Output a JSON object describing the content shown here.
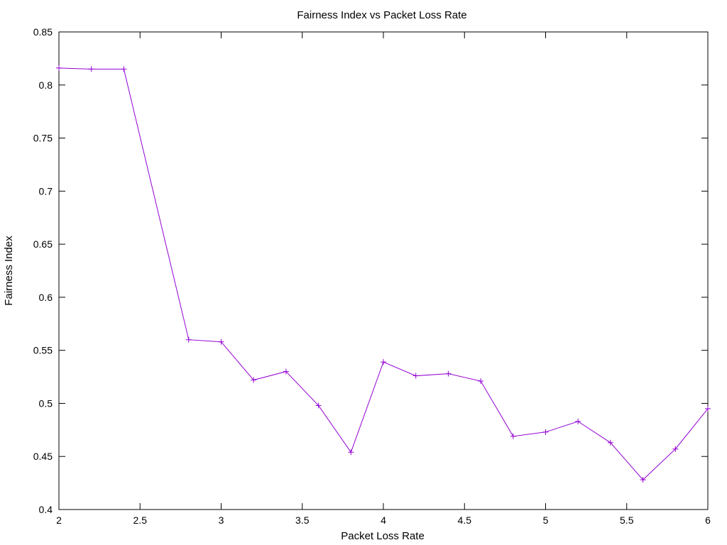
{
  "chart_data": {
    "type": "line",
    "title": "Fairness Index vs Packet Loss Rate",
    "xlabel": "Packet Loss Rate",
    "ylabel": "Fairness Index",
    "xlim": [
      2,
      6
    ],
    "ylim": [
      0.4,
      0.85
    ],
    "xticks": [
      2,
      2.5,
      3,
      3.5,
      4,
      4.5,
      5,
      5.5,
      6
    ],
    "xtick_labels": [
      "2",
      "2.5",
      "3",
      "3.5",
      "4",
      "4.5",
      "5",
      "5.5",
      "6"
    ],
    "yticks": [
      0.4,
      0.45,
      0.5,
      0.55,
      0.6,
      0.65,
      0.7,
      0.75,
      0.8,
      0.85
    ],
    "ytick_labels": [
      "0.4",
      "0.45",
      "0.5",
      "0.55",
      "0.6",
      "0.65",
      "0.7",
      "0.75",
      "0.8",
      "0.85"
    ],
    "grid": false,
    "legend": "none",
    "series": [
      {
        "color": "#9400d3",
        "marker": "plus",
        "x": [
          2.0,
          2.2,
          2.4,
          2.8,
          3.0,
          3.2,
          3.4,
          3.6,
          3.8,
          4.0,
          4.2,
          4.4,
          4.6,
          4.8,
          5.0,
          5.2,
          5.4,
          5.6,
          5.8,
          6.0
        ],
        "y": [
          0.816,
          0.815,
          0.815,
          0.56,
          0.558,
          0.522,
          0.53,
          0.498,
          0.454,
          0.539,
          0.526,
          0.528,
          0.521,
          0.469,
          0.473,
          0.483,
          0.463,
          0.428,
          0.457,
          0.495
        ]
      }
    ]
  }
}
